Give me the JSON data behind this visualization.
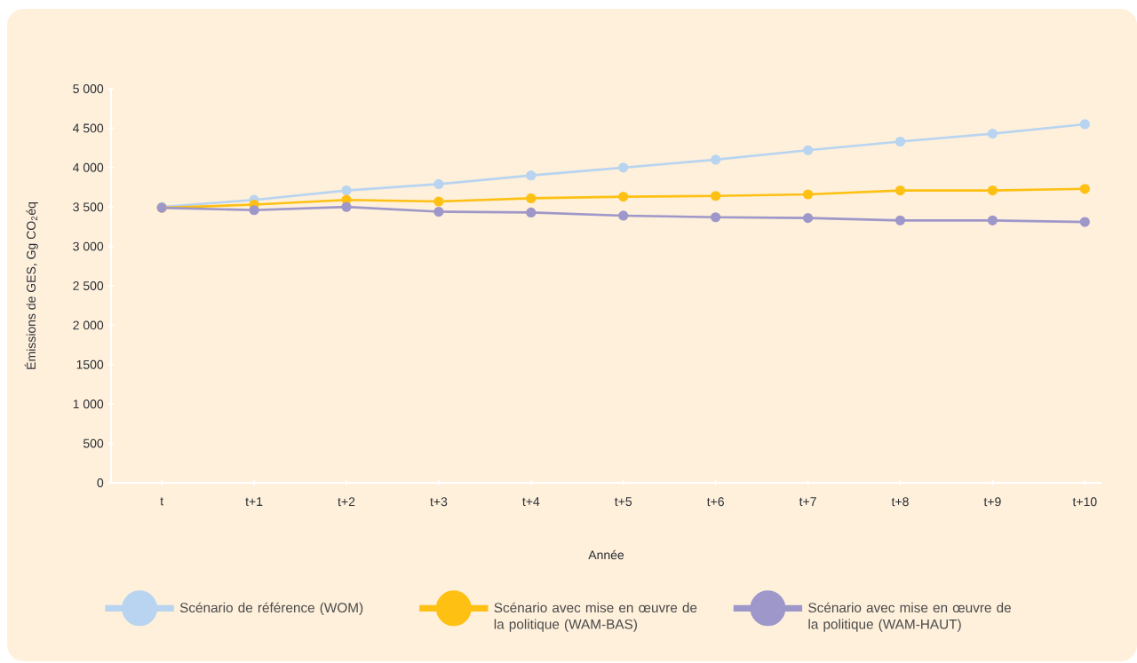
{
  "chart_data": {
    "type": "line",
    "xlabel": "Année",
    "ylabel": "Émissions de GES, Gg CO$_{2}$éq",
    "categories": [
      "t",
      "t+1",
      "t+2",
      "t+3",
      "t+4",
      "t+5",
      "t+6",
      "t+7",
      "t+8",
      "t+9",
      "t+10"
    ],
    "series": [
      {
        "name": "Scénario de référence (WOM)",
        "color": "#b8d4f0",
        "values": [
          3500,
          3590,
          3710,
          3790,
          3900,
          4000,
          4100,
          4220,
          4330,
          4430,
          4550
        ]
      },
      {
        "name": "Scénario avec mise en œuvre de la politique (WAM-BAS)",
        "color": "#fec013",
        "values": [
          3490,
          3530,
          3590,
          3570,
          3610,
          3630,
          3640,
          3660,
          3710,
          3710,
          3730
        ]
      },
      {
        "name": "Scénario avec mise en œuvre de la politique (WAM-HAUT)",
        "color": "#9e97c9",
        "values": [
          3490,
          3460,
          3500,
          3440,
          3430,
          3390,
          3370,
          3360,
          3330,
          3330,
          3310
        ]
      }
    ],
    "ylim": [
      0,
      5000
    ],
    "yticks": [
      0,
      500,
      {
        "value": 1000,
        "label": "1 000"
      },
      1500,
      {
        "value": 2000,
        "label": "2 000"
      },
      {
        "value": 2500,
        "label": "2 500"
      },
      {
        "value": 3000,
        "label": "3 000"
      },
      {
        "value": 3500,
        "label": "3 500"
      },
      {
        "value": 4000,
        "label": "4 000"
      },
      {
        "value": 4500,
        "label": "4 500"
      },
      {
        "value": 5000,
        "label": "5 000"
      }
    ],
    "grid": false,
    "legend": "bottom",
    "marker": "circle",
    "line_style": "solid"
  }
}
